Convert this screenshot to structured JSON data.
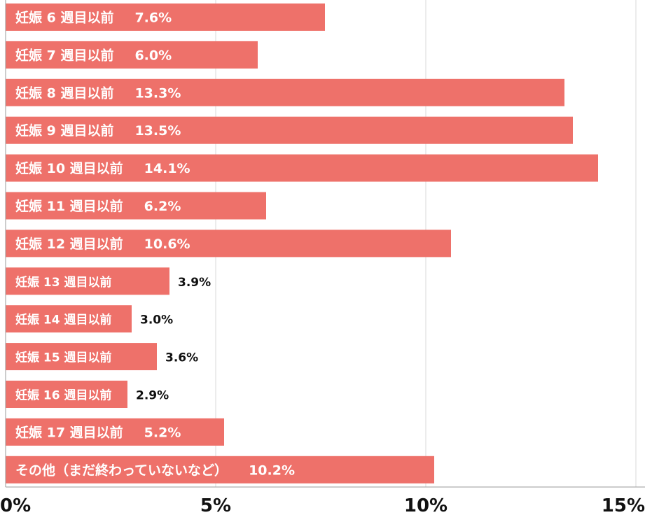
{
  "chart_data": {
    "type": "bar",
    "orientation": "horizontal",
    "categories": [
      "妊娠 6 週目以前",
      "妊娠 7 週目以前",
      "妊娠 8 週目以前",
      "妊娠 9 週目以前",
      "妊娠 10 週目以前",
      "妊娠 11 週目以前",
      "妊娠 12 週目以前",
      "妊娠 13 週目以前",
      "妊娠 14 週目以前",
      "妊娠 15 週目以前",
      "妊娠 16 週目以前",
      "妊娠 17 週目以前",
      "その他（まだ終わっていないなど）"
    ],
    "values": [
      7.6,
      6.0,
      13.3,
      13.5,
      14.1,
      6.2,
      10.6,
      3.9,
      3.0,
      3.6,
      2.9,
      5.2,
      10.2
    ],
    "value_labels": [
      "7.6%",
      "6.0%",
      "13.3%",
      "13.5%",
      "14.1%",
      "6.2%",
      "10.6%",
      "3.9%",
      "3.0%",
      "3.6%",
      "2.9%",
      "5.2%",
      "10.2%"
    ],
    "title": "",
    "xlabel": "",
    "ylabel": "",
    "xlim": [
      0,
      15
    ],
    "x_ticks": [
      0,
      5,
      10,
      15
    ],
    "x_tick_labels": [
      "0%",
      "5%",
      "10%",
      "15%"
    ],
    "grid": true,
    "legend": "none"
  },
  "colors": {
    "bar": "#ee716a",
    "grid": "#d9d9d9",
    "axis": "#999999",
    "label_on_bar": "#ffffff",
    "label_outside": "#111111"
  }
}
